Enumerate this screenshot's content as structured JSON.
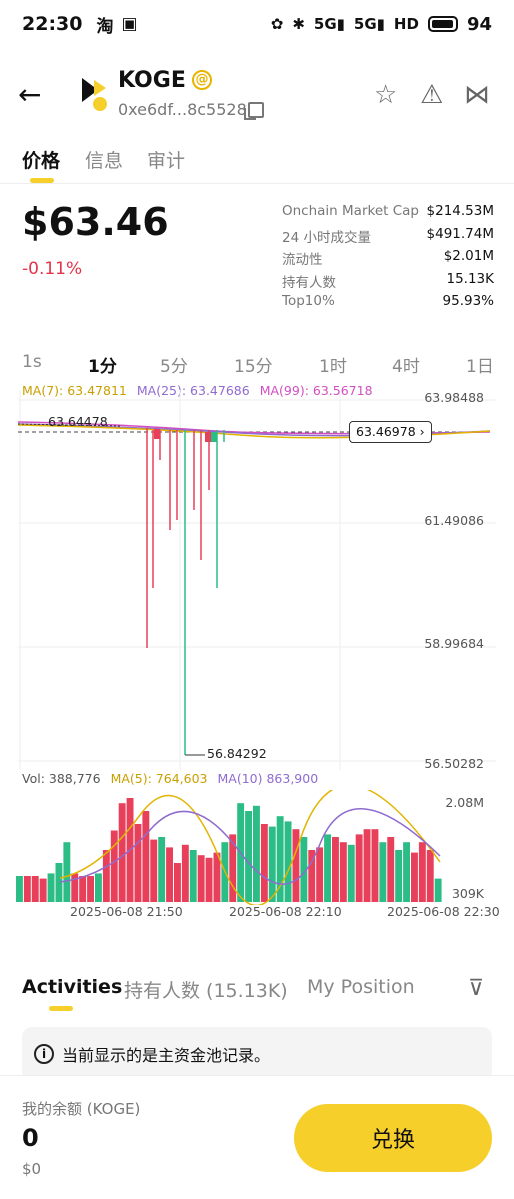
{
  "status_bar": {
    "time": "22:30",
    "app_icon_text": "淘",
    "network": "5G",
    "network2": "5G",
    "hd": "HD",
    "battery": "94"
  },
  "header": {
    "token_name": "KOGE",
    "badge": "@",
    "address": "0xe6df...8c5528"
  },
  "tabs": [
    "价格",
    "信息",
    "审计"
  ],
  "price": {
    "value": "$63.46",
    "change": "-0.11%"
  },
  "stats": [
    {
      "label": "Onchain Market Cap",
      "value": "$214.53M"
    },
    {
      "label": "24 小时成交量",
      "value": "$491.74M"
    },
    {
      "label": "流动性",
      "value": "$2.01M"
    },
    {
      "label": "持有人数",
      "value": "15.13K"
    },
    {
      "label": "Top10%",
      "value": "95.93%"
    }
  ],
  "intervals": [
    "1s",
    "1分",
    "5分",
    "15分",
    "1时",
    "4时",
    "1日"
  ],
  "ma": {
    "ma7": "MA(7): 63.47811",
    "ma25": "MA(25): 63.47686",
    "ma99": "MA(99): 63.56718"
  },
  "colors": {
    "up": "#2bbd85",
    "down": "#e8405a",
    "ma7": "#e2b400",
    "ma25": "#8f6bd0",
    "ma99": "#d24fc1",
    "accent": "#f6cf2a"
  },
  "chart_data": {
    "type": "candlestick",
    "y_ticks": [
      "63.98488",
      "61.49086",
      "58.99684",
      "56.50282"
    ],
    "ylim": [
      56.50282,
      63.98488
    ],
    "high_marker": "63.64478",
    "low_marker": "56.84292",
    "current_price": "63.46978",
    "x_ticks": [
      "2025-06-08 21:50",
      "2025-06-08 22:10",
      "2025-06-08 22:30"
    ],
    "volume": {
      "label": "Vol: 388,776",
      "ma5": "MA(5): 764,603",
      "ma10": "MA(10) 863,900",
      "y_ticks": [
        "2.08M",
        "309K"
      ]
    }
  },
  "activities": {
    "tabs": [
      "Activities",
      "持有人数 (15.13K)",
      "My Position"
    ],
    "notice": "当前显示的是主资金池记录。"
  },
  "footer": {
    "balance_label": "我的余额 (KOGE)",
    "balance": "0",
    "balance_usd": "$0",
    "swap": "兑换"
  }
}
